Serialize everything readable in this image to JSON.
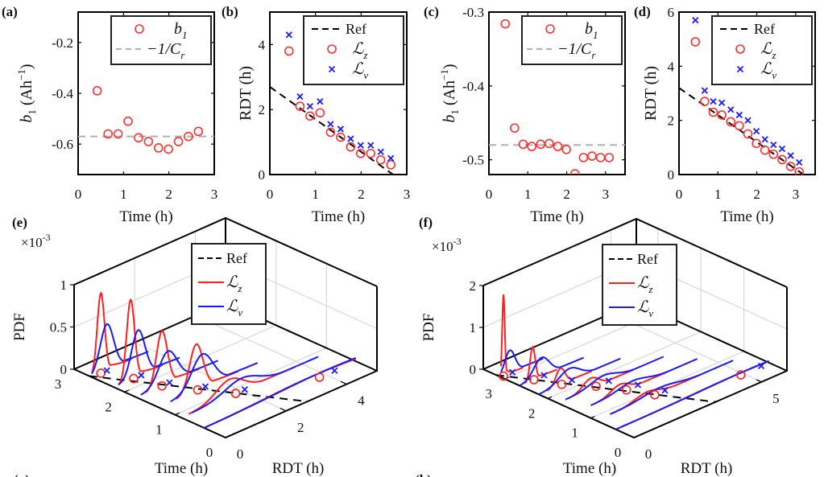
{
  "chart_data": [
    {
      "id": "a",
      "type": "scatter",
      "panel_label": "(a)",
      "xlabel": "Time (h)",
      "ylabel": "b1 (Ah^-1)",
      "ylabel_parts": {
        "sym": "b",
        "sub": "1",
        "unit": "(Ah",
        "sup": "−1",
        "close": ")"
      },
      "xlim": [
        0,
        3
      ],
      "ylim": [
        -0.72,
        -0.08
      ],
      "xticks": [
        0,
        1,
        2,
        3
      ],
      "yticks": [
        -0.6,
        -0.4,
        -0.2
      ],
      "ytick_labels": [
        "-0.6",
        "-0.4",
        "-0.2"
      ],
      "series": [
        {
          "name": "b1",
          "label_sym": "b",
          "label_sub": "1",
          "marker": "circle",
          "color": "#ff3030",
          "x": [
            0.42,
            0.66,
            0.88,
            1.1,
            1.33,
            1.55,
            1.77,
            1.99,
            2.21,
            2.43,
            2.65
          ],
          "y": [
            -0.39,
            -0.56,
            -0.56,
            -0.51,
            -0.575,
            -0.59,
            -0.615,
            -0.62,
            -0.59,
            -0.57,
            -0.55
          ]
        }
      ],
      "hlines": [
        {
          "name": "-1/Cr",
          "label": "−1/C",
          "label_sub": "r",
          "y": -0.57,
          "color": "#b0b0b0",
          "style": "dashed"
        }
      ],
      "legend": "top-right"
    },
    {
      "id": "b",
      "type": "scatter",
      "panel_label": "(b)",
      "xlabel": "Time (h)",
      "ylabel": "RDT (h)",
      "xlim": [
        0,
        3
      ],
      "ylim": [
        0,
        5
      ],
      "xticks": [
        0,
        1,
        2,
        3
      ],
      "yticks": [
        0,
        2,
        4
      ],
      "ytick_labels": [
        "0",
        "2",
        "4"
      ],
      "ref_line": {
        "name": "Ref",
        "x": [
          0,
          2.7
        ],
        "y": [
          2.7,
          0
        ],
        "color": "#000000",
        "style": "dashed"
      },
      "series": [
        {
          "name": "Lz",
          "label": "ℒ",
          "label_sub": "z",
          "marker": "circle",
          "color": "#ff3030",
          "x": [
            0.42,
            0.66,
            0.88,
            1.1,
            1.33,
            1.55,
            1.77,
            1.99,
            2.21,
            2.43,
            2.65
          ],
          "y": [
            3.8,
            2.1,
            1.8,
            1.9,
            1.3,
            1.15,
            0.85,
            0.65,
            0.65,
            0.45,
            0.3
          ]
        },
        {
          "name": "Lv",
          "label": "ℒ",
          "label_sub": "v",
          "marker": "x",
          "color": "#1a1aff",
          "x": [
            0.42,
            0.66,
            0.88,
            1.1,
            1.33,
            1.55,
            1.77,
            1.99,
            2.21,
            2.43,
            2.65
          ],
          "y": [
            4.3,
            2.4,
            2.1,
            2.25,
            1.55,
            1.4,
            1.1,
            0.9,
            0.9,
            0.7,
            0.5
          ]
        }
      ],
      "legend": "top-right"
    },
    {
      "id": "c",
      "type": "scatter",
      "panel_label": "(c)",
      "xlabel": "Time (h)",
      "ylabel": "b1 (Ah^-1)",
      "ylabel_parts": {
        "sym": "b",
        "sub": "1",
        "unit": "(Ah",
        "sup": "−1",
        "close": ")"
      },
      "xlim": [
        0,
        3.5
      ],
      "ylim": [
        -0.52,
        -0.3
      ],
      "xticks": [
        0,
        1,
        2,
        3
      ],
      "yticks": [
        -0.5,
        -0.4,
        -0.3
      ],
      "ytick_labels": [
        "-0.5",
        "-0.4",
        "-0.3"
      ],
      "series": [
        {
          "name": "b1",
          "label_sym": "b",
          "label_sub": "1",
          "marker": "circle",
          "color": "#ff3030",
          "x": [
            0.42,
            0.66,
            0.88,
            1.1,
            1.33,
            1.55,
            1.77,
            1.99,
            2.21,
            2.43,
            2.65,
            2.87,
            3.09
          ],
          "y": [
            -0.316,
            -0.457,
            -0.479,
            -0.482,
            -0.479,
            -0.478,
            -0.482,
            -0.486,
            -0.519,
            -0.497,
            -0.495,
            -0.497,
            -0.497
          ]
        }
      ],
      "hlines": [
        {
          "name": "-1/Cr",
          "label": "−1/C",
          "label_sub": "r",
          "y": -0.48,
          "color": "#b0b0b0",
          "style": "dashed"
        }
      ],
      "legend": "top-right"
    },
    {
      "id": "d",
      "type": "scatter",
      "panel_label": "(d)",
      "xlabel": "Time (h)",
      "ylabel": "RDT (h)",
      "xlim": [
        0,
        3.5
      ],
      "ylim": [
        0,
        6
      ],
      "xticks": [
        0,
        1,
        2,
        3
      ],
      "yticks": [
        0,
        2,
        4,
        6
      ],
      "ytick_labels": [
        "0",
        "2",
        "4",
        "6"
      ],
      "ref_line": {
        "name": "Ref",
        "x": [
          0,
          3.2
        ],
        "y": [
          3.2,
          0
        ],
        "color": "#000000",
        "style": "dashed"
      },
      "series": [
        {
          "name": "Lz",
          "label": "ℒ",
          "label_sub": "z",
          "marker": "circle",
          "color": "#ff3030",
          "x": [
            0.42,
            0.66,
            0.88,
            1.1,
            1.33,
            1.55,
            1.77,
            1.99,
            2.21,
            2.43,
            2.65,
            2.87,
            3.09
          ],
          "y": [
            4.9,
            2.7,
            2.3,
            2.2,
            1.95,
            1.8,
            1.5,
            1.15,
            0.9,
            0.75,
            0.55,
            0.3,
            0.1
          ]
        },
        {
          "name": "Lv",
          "label": "ℒ",
          "label_sub": "v",
          "marker": "x",
          "color": "#1a1aff",
          "x": [
            0.42,
            0.66,
            0.88,
            1.1,
            1.33,
            1.55,
            1.77,
            1.99,
            2.21,
            2.43,
            2.65,
            2.87,
            3.09
          ],
          "y": [
            5.7,
            3.1,
            2.7,
            2.65,
            2.4,
            2.2,
            2.0,
            1.6,
            1.3,
            1.1,
            0.95,
            0.7,
            0.45
          ]
        }
      ],
      "legend": "top-right"
    },
    {
      "id": "e",
      "type": "line",
      "subtype": "3d-pdf-waterfall",
      "panel_label": "(e)",
      "xlabel": "Time (h)",
      "ylabel": "RDT (h)",
      "zlabel": "PDF",
      "z_multiplier": "×10",
      "z_multiplier_exp": "-3",
      "time_lim": [
        0,
        3
      ],
      "rdt_lim": [
        0,
        5
      ],
      "z_lim": [
        0,
        1
      ],
      "time_ticks": [
        0,
        1,
        2,
        3
      ],
      "rdt_ticks": [
        0,
        2,
        4
      ],
      "z_ticks": [
        0,
        0.5,
        1
      ],
      "z_tick_labels": [
        "0",
        "0.5",
        "1"
      ],
      "ref_line": {
        "name": "Ref",
        "time": [
          2.7,
          0
        ],
        "rdt": [
          0,
          2.7
        ]
      },
      "times": [
        2.65,
        2.21,
        1.77,
        1.33,
        0.88,
        0.42
      ],
      "Lz": {
        "name": "Lz",
        "color": "#ff2020",
        "point_rdt": [
          0.3,
          0.65,
          0.85,
          1.3,
          1.8,
          3.8
        ],
        "peak_rdt": [
          0.3,
          0.55,
          0.85,
          1.25,
          1.6,
          3.5
        ],
        "peak_pdf": [
          0.95,
          0.95,
          0.65,
          0.55,
          0.2,
          0.05
        ],
        "width": [
          0.12,
          0.13,
          0.18,
          0.22,
          0.45,
          1.5
        ]
      },
      "Lv": {
        "name": "Lv",
        "color": "#1a1aff",
        "point_rdt": [
          0.5,
          0.9,
          1.1,
          1.55,
          2.1,
          4.3
        ],
        "peak_rdt": [
          0.5,
          0.8,
          1.05,
          1.45,
          2.0,
          3.9
        ],
        "peak_pdf": [
          0.55,
          0.55,
          0.38,
          0.4,
          0.15,
          0.05
        ],
        "width": [
          0.22,
          0.22,
          0.3,
          0.35,
          0.55,
          1.6
        ]
      },
      "legend": "top-center",
      "legend_entries": [
        {
          "label": "Ref",
          "sub": "",
          "color": "#000000",
          "style": "dashed"
        },
        {
          "label": "ℒ",
          "sub": "z",
          "color": "#ff2020",
          "style": "solid"
        },
        {
          "label": "ℒ",
          "sub": "v",
          "color": "#1a1aff",
          "style": "solid"
        }
      ]
    },
    {
      "id": "f",
      "type": "line",
      "subtype": "3d-pdf-waterfall",
      "panel_label": "(f)",
      "xlabel": "Time (h)",
      "ylabel": "RDT (h)",
      "zlabel": "PDF",
      "z_multiplier": "×10",
      "z_multiplier_exp": "-3",
      "time_lim": [
        0,
        3.5
      ],
      "rdt_lim": [
        0,
        6
      ],
      "z_lim": [
        0,
        2
      ],
      "time_ticks": [
        0,
        1,
        2,
        3
      ],
      "rdt_ticks": [
        0,
        5
      ],
      "z_ticks": [
        0,
        1,
        2
      ],
      "z_tick_labels": [
        "0",
        "1",
        "2"
      ],
      "ref_line": {
        "name": "Ref",
        "time": [
          3.2,
          0
        ],
        "rdt": [
          0,
          3.2
        ]
      },
      "times": [
        3.09,
        2.65,
        2.21,
        1.77,
        1.33,
        0.88,
        0.42
      ],
      "Lz": {
        "name": "Lz",
        "color": "#ff2020",
        "point_rdt": [
          0.1,
          0.55,
          0.9,
          1.5,
          1.95,
          2.3,
          4.9
        ],
        "peak_rdt": [
          0.1,
          0.5,
          0.85,
          1.3,
          1.7,
          2.0,
          4.5
        ],
        "peak_pdf": [
          1.95,
          0.8,
          0.4,
          0.25,
          0.2,
          0.15,
          0.05
        ],
        "width": [
          0.05,
          0.1,
          0.18,
          0.3,
          0.35,
          0.45,
          1.6
        ]
      },
      "Lv": {
        "name": "Lv",
        "color": "#1a1aff",
        "point_rdt": [
          0.45,
          0.95,
          1.3,
          2.0,
          2.4,
          2.7,
          5.7
        ],
        "peak_rdt": [
          0.35,
          0.85,
          1.2,
          1.8,
          2.2,
          2.5,
          5.0
        ],
        "peak_pdf": [
          0.55,
          0.45,
          0.3,
          0.18,
          0.15,
          0.12,
          0.05
        ],
        "width": [
          0.2,
          0.3,
          0.4,
          0.5,
          0.55,
          0.65,
          1.7
        ]
      },
      "legend": "top-center",
      "legend_entries": [
        {
          "label": "Ref",
          "sub": "",
          "color": "#000000",
          "style": "dashed"
        },
        {
          "label": "ℒ",
          "sub": "z",
          "color": "#ff2020",
          "style": "solid"
        },
        {
          "label": "ℒ",
          "sub": "v",
          "color": "#1a1aff",
          "style": "solid"
        }
      ]
    }
  ],
  "bottom_labels": [
    "(g)",
    "(h)"
  ]
}
